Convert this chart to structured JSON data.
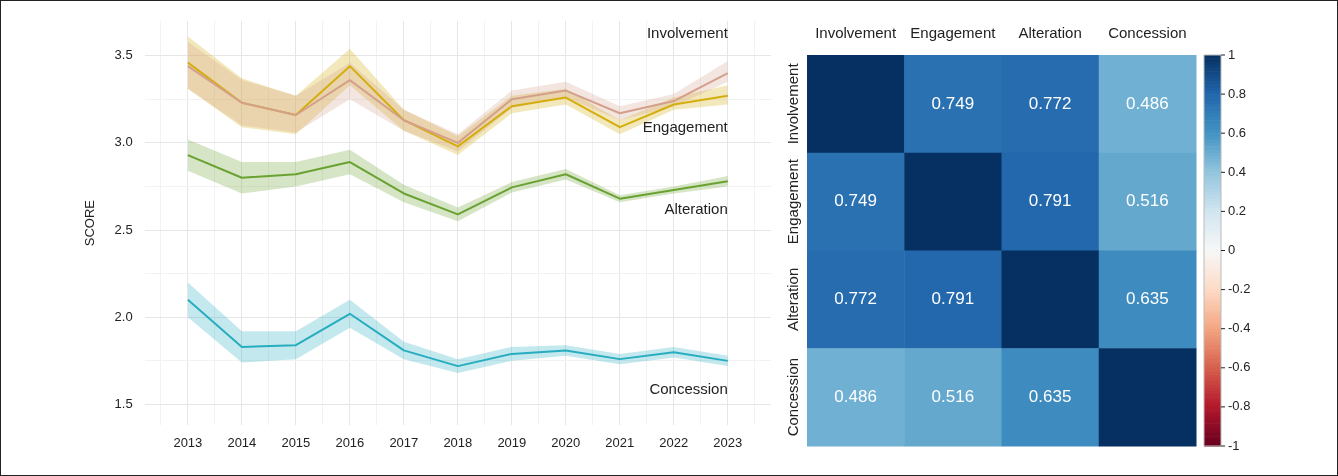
{
  "chart_data": [
    {
      "type": "line",
      "ylabel": "SCORE",
      "x": [
        2013,
        2014,
        2015,
        2016,
        2017,
        2018,
        2019,
        2020,
        2021,
        2022,
        2023
      ],
      "xlim": [
        2012.2,
        2023.8
      ],
      "xticks": [
        {
          "value": 2012.5,
          "label": null
        },
        2013,
        {
          "value": 2013.5,
          "label": null
        },
        2014,
        {
          "value": 2014.5,
          "label": null
        },
        2015,
        {
          "value": 2015.5,
          "label": null
        },
        2016,
        {
          "value": 2016.5,
          "label": null
        },
        2017,
        {
          "value": 2017.5,
          "label": null
        },
        2018,
        {
          "value": 2018.5,
          "label": null
        },
        2019,
        {
          "value": 2019.5,
          "label": null
        },
        2020,
        {
          "value": 2020.5,
          "label": null
        },
        2021,
        {
          "value": 2021.5,
          "label": null
        },
        2022,
        {
          "value": 2022.5,
          "label": null
        },
        2023,
        {
          "value": 2023.5,
          "label": null
        }
      ],
      "ylim": [
        1.38,
        3.7
      ],
      "yticks": [
        {
          "value": 1.5,
          "label": "1.5"
        },
        {
          "value": 1.75,
          "label": null
        },
        {
          "value": 2.0,
          "label": "2.0"
        },
        {
          "value": 2.25,
          "label": null
        },
        {
          "value": 2.5,
          "label": "2.5"
        },
        {
          "value": 2.75,
          "label": null
        },
        {
          "value": 3.0,
          "label": "3.0"
        },
        {
          "value": 3.25,
          "label": null
        },
        {
          "value": 3.5,
          "label": "3.5"
        }
      ],
      "grid": true,
      "series": [
        {
          "name": "Involvement",
          "color": "#d4a08c",
          "values": [
            3.44,
            3.23,
            3.16,
            3.36,
            3.13,
            3.0,
            3.25,
            3.3,
            3.17,
            3.24,
            3.4
          ],
          "lower": [
            3.31,
            3.1,
            3.06,
            3.25,
            3.07,
            2.95,
            3.2,
            3.26,
            3.13,
            3.21,
            3.35
          ],
          "upper": [
            3.58,
            3.36,
            3.27,
            3.46,
            3.19,
            3.05,
            3.3,
            3.35,
            3.21,
            3.28,
            3.47
          ]
        },
        {
          "name": "Engagement",
          "color": "#d4ae0e",
          "values": [
            3.46,
            3.23,
            3.16,
            3.44,
            3.13,
            2.98,
            3.21,
            3.26,
            3.09,
            3.22,
            3.27
          ],
          "lower": [
            3.31,
            3.09,
            3.05,
            3.33,
            3.07,
            2.93,
            3.17,
            3.22,
            3.05,
            3.19,
            3.22
          ],
          "upper": [
            3.61,
            3.37,
            3.27,
            3.54,
            3.19,
            3.04,
            3.27,
            3.31,
            3.13,
            3.26,
            3.33
          ]
        },
        {
          "name": "Alteration",
          "color": "#6aa232",
          "values": [
            2.93,
            2.8,
            2.82,
            2.89,
            2.71,
            2.59,
            2.745,
            2.82,
            2.68,
            2.73,
            2.78
          ],
          "lower": [
            2.84,
            2.71,
            2.75,
            2.82,
            2.66,
            2.55,
            2.715,
            2.79,
            2.66,
            2.71,
            2.75
          ],
          "upper": [
            3.02,
            2.89,
            2.89,
            2.96,
            2.76,
            2.63,
            2.775,
            2.85,
            2.7,
            2.75,
            2.81
          ]
        },
        {
          "name": "Concession",
          "color": "#27adc0",
          "values": [
            2.1,
            1.83,
            1.84,
            2.02,
            1.81,
            1.72,
            1.79,
            1.81,
            1.76,
            1.8,
            1.75
          ],
          "lower": [
            2.0,
            1.74,
            1.76,
            1.94,
            1.76,
            1.68,
            1.75,
            1.78,
            1.73,
            1.77,
            1.72
          ],
          "upper": [
            2.2,
            1.92,
            1.92,
            2.1,
            1.86,
            1.76,
            1.83,
            1.84,
            1.79,
            1.83,
            1.78
          ]
        }
      ]
    },
    {
      "type": "heatmap",
      "categories": [
        "Involvement",
        "Engagement",
        "Alteration",
        "Concession"
      ],
      "y_categories": [
        "Involvement",
        "Engagement",
        "Alteration",
        "Concession"
      ],
      "cells": [
        [
          1,
          0.749,
          0.772,
          0.486
        ],
        [
          0.749,
          1,
          0.791,
          0.516
        ],
        [
          0.772,
          0.791,
          1,
          0.635
        ],
        [
          0.486,
          0.516,
          0.635,
          1
        ]
      ],
      "cell_labels": [
        [
          null,
          "0.749",
          "0.772",
          "0.486"
        ],
        [
          "0.749",
          null,
          "0.791",
          "0.516"
        ],
        [
          "0.772",
          "0.791",
          null,
          "0.635"
        ],
        [
          "0.486",
          "0.516",
          "0.635",
          null
        ]
      ],
      "clim": [
        -1,
        1
      ],
      "cticks": [
        1,
        0.8,
        0.6,
        0.4,
        0.2,
        0,
        -0.2,
        -0.4,
        -0.6,
        -0.8,
        -1
      ]
    }
  ]
}
